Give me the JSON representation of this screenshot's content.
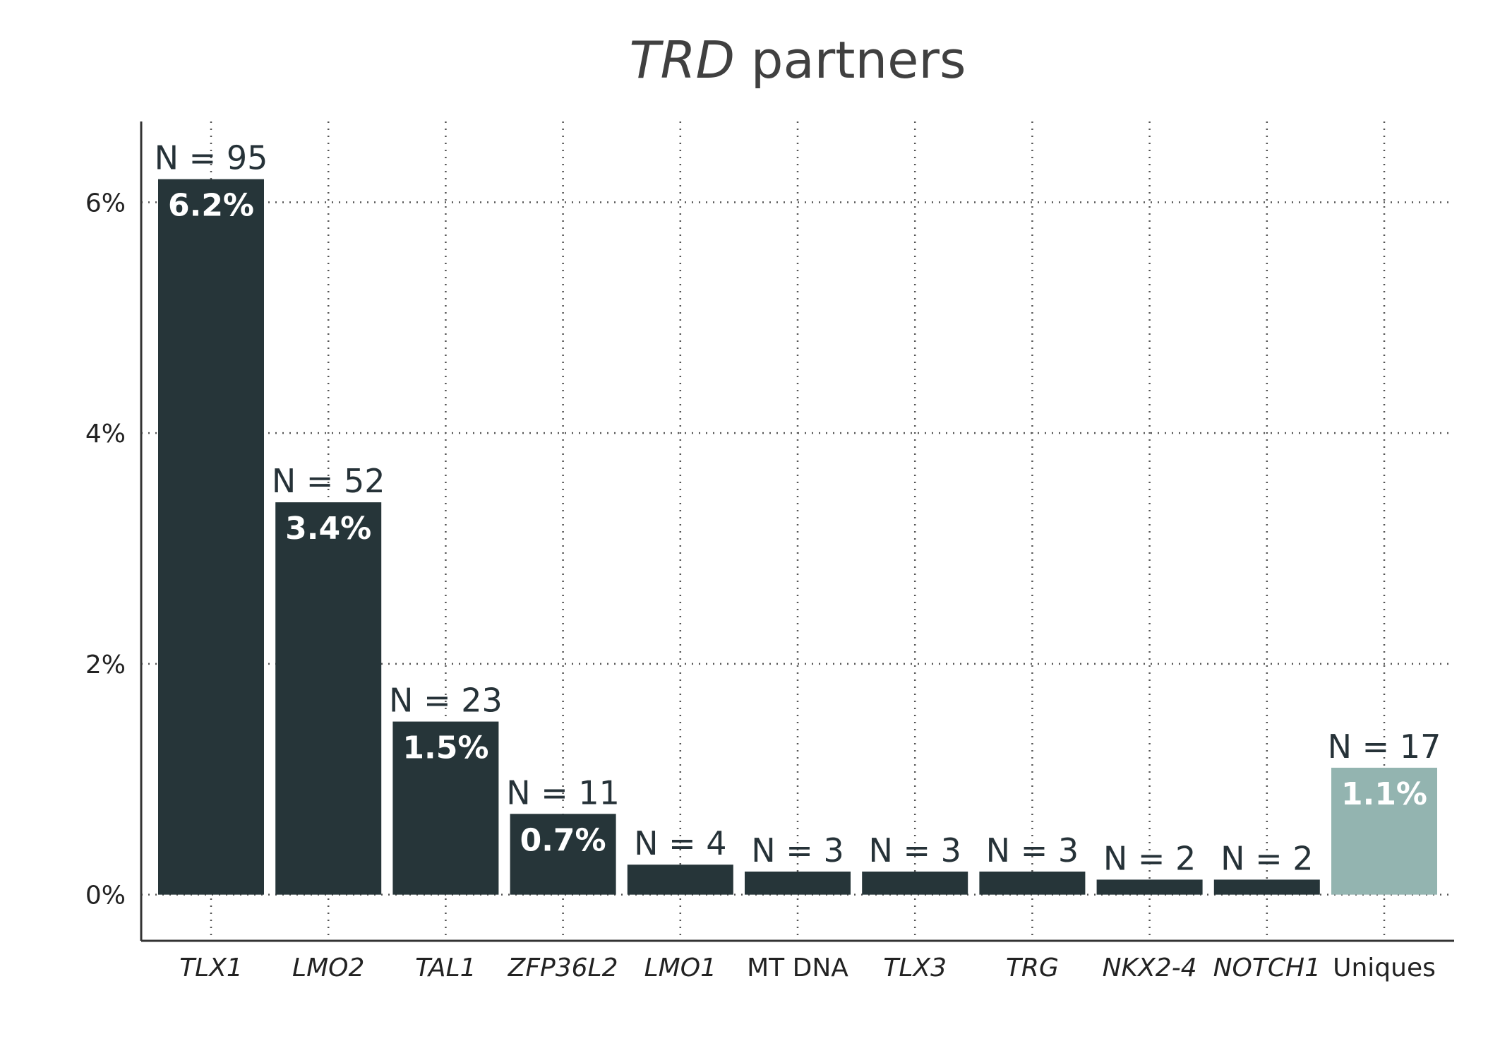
{
  "chart_data": {
    "type": "bar",
    "title": "TRD partners",
    "title_italic_part": "TRD",
    "title_rest": " partners",
    "xlabel": "",
    "ylabel": "",
    "ylim": [
      -0.4,
      6.7
    ],
    "yticks": [
      0,
      2,
      4,
      6
    ],
    "ytick_labels": [
      "0%",
      "2%",
      "4%",
      "6%"
    ],
    "grid": true,
    "categories": [
      "TLX1",
      "LMO2",
      "TAL1",
      "ZFP36L2",
      "LMO1",
      "MT DNA",
      "TLX3",
      "TRG",
      "NKX2-4",
      "NOTCH1",
      "Uniques"
    ],
    "category_italic": [
      true,
      true,
      true,
      true,
      true,
      false,
      true,
      true,
      true,
      true,
      false
    ],
    "values": [
      6.2,
      3.4,
      1.5,
      0.7,
      0.26,
      0.2,
      0.2,
      0.2,
      0.13,
      0.13,
      1.1
    ],
    "n_labels": [
      "N = 95",
      "N = 52",
      "N = 23",
      "N = 11",
      "N = 4",
      "N = 3",
      "N = 3",
      "N = 3",
      "N = 2",
      "N = 2",
      "N = 17"
    ],
    "pct_labels": [
      "6.2%",
      "3.4%",
      "1.5%",
      "0.7%",
      "",
      "",
      "",
      "",
      "",
      "",
      "1.1%"
    ],
    "bar_colors": [
      "#263539",
      "#263539",
      "#263539",
      "#263539",
      "#263539",
      "#263539",
      "#263539",
      "#263539",
      "#263539",
      "#263539",
      "#93b4b0"
    ]
  }
}
